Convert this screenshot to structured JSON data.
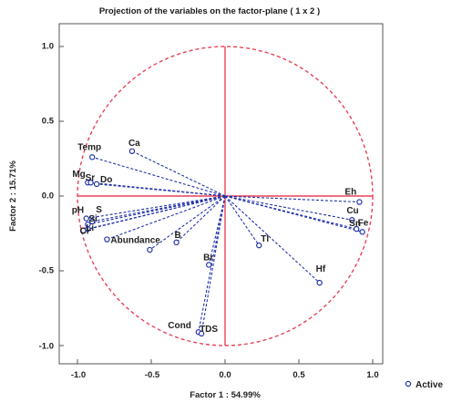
{
  "chart_data": {
    "type": "scatter",
    "title": "Projection of the variables on the factor-plane ( 1 x 2 )",
    "xlabel": "Factor 1 : 54.99%",
    "ylabel": "Factor 2 : 15.71%",
    "xlim": [
      -1.1,
      1.1
    ],
    "ylim": [
      -1.1,
      1.1
    ],
    "xticks": [
      "-1.0",
      "-0.5",
      "0.0",
      "0.5",
      "1.0"
    ],
    "yticks": [
      "1.0",
      "0.5",
      "0.0",
      "-0.5",
      "-1.0"
    ],
    "xtick_values": [
      -1.0,
      -0.5,
      0.0,
      0.5,
      1.0
    ],
    "ytick_values": [
      1.0,
      0.5,
      0.0,
      -0.5,
      -1.0
    ],
    "unit_circle": true,
    "legend": {
      "position": "bottom-right",
      "entries": [
        "Active"
      ]
    },
    "series": [
      {
        "name": "Active",
        "color": "#2233aa",
        "points": [
          {
            "label": "Ca",
            "x": -0.63,
            "y": 0.3
          },
          {
            "label": "Temp",
            "x": -0.9,
            "y": 0.26
          },
          {
            "label": "Mg",
            "x": -0.93,
            "y": 0.09
          },
          {
            "label": "Sr",
            "x": -0.91,
            "y": 0.09
          },
          {
            "label": "Do",
            "x": -0.87,
            "y": 0.08
          },
          {
            "label": "pH",
            "x": -0.94,
            "y": -0.15
          },
          {
            "label": "S",
            "x": -0.9,
            "y": -0.17
          },
          {
            "label": "Si",
            "x": -0.93,
            "y": -0.19
          },
          {
            "label": "Cl",
            "x": -0.96,
            "y": -0.23
          },
          {
            "label": "Li",
            "x": -0.93,
            "y": -0.22
          },
          {
            "label": "Abundance",
            "x": -0.8,
            "y": -0.29
          },
          {
            "label": "",
            "x": -0.51,
            "y": -0.36
          },
          {
            "label": "B",
            "x": -0.33,
            "y": -0.31
          },
          {
            "label": "Br",
            "x": -0.11,
            "y": -0.46
          },
          {
            "label": "Cond",
            "x": -0.18,
            "y": -0.91
          },
          {
            "label": "TDS",
            "x": -0.16,
            "y": -0.92
          },
          {
            "label": "Tl",
            "x": 0.23,
            "y": -0.33
          },
          {
            "label": "Hf",
            "x": 0.64,
            "y": -0.58
          },
          {
            "label": "Eh",
            "x": 0.91,
            "y": -0.04
          },
          {
            "label": "Cu",
            "x": 0.86,
            "y": -0.16
          },
          {
            "label": "Sn",
            "x": 0.89,
            "y": -0.22
          },
          {
            "label": "Fe",
            "x": 0.93,
            "y": -0.24
          }
        ]
      }
    ]
  }
}
